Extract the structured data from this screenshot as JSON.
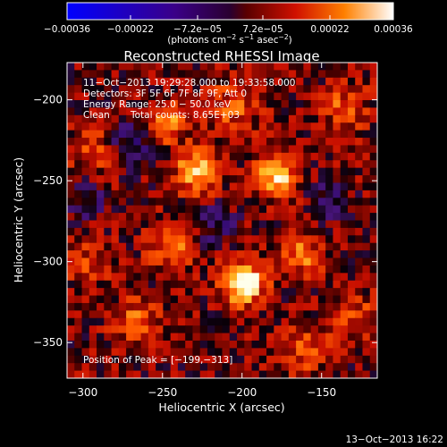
{
  "chart_data": {
    "type": "heatmap",
    "title": "Reconstructed RHESSI Image",
    "xlabel": "Heliocentric X (arcsec)",
    "ylabel": "Heliocentric Y (arcsec)",
    "xlim": [
      -310,
      -115
    ],
    "ylim": [
      -372,
      -177
    ],
    "x_ticks": [
      -300,
      -250,
      -200,
      -150
    ],
    "x_tick_labels": [
      "−300",
      "−250",
      "−200",
      "−150"
    ],
    "y_ticks": [
      -200,
      -250,
      -300,
      -350
    ],
    "y_tick_labels": [
      "−200",
      "−250",
      "−300",
      "−350"
    ],
    "colorbar": {
      "range": [
        -0.00036,
        0.00036
      ],
      "ticks": [
        -0.00036,
        -0.00022,
        -7.2e-05,
        7.2e-05,
        0.00022,
        0.00036
      ],
      "tick_labels": [
        "−0.00036",
        "−0.00022",
        "−7.2e−05",
        "7.2e−05",
        "0.00022",
        "0.00036"
      ],
      "unit_main": "(photons cm",
      "unit_exp1": "−2",
      "unit_mid": " s",
      "unit_exp2": "−1",
      "unit_end": " asec",
      "unit_exp3": "−2",
      "unit_close": ")"
    },
    "annotations": {
      "time_range": "11−Oct−2013 19:29:28.000 to 19:33:58.000",
      "detectors": "Detectors: 3F 5F 6F 7F 8F 9F, Att 0",
      "energy": "Energy Range: 25.0 − 50.0 keV",
      "clean_label": "Clean",
      "total_counts": "Total counts: 8.65E+03",
      "peak": "Position of Peak = [−199,−313]"
    },
    "peak_position": [
      -199,
      -313
    ],
    "sources": [
      {
        "x": -199,
        "y": -313,
        "amplitude": 1.0,
        "sigma": 9
      },
      {
        "x": -228,
        "y": -244,
        "amplitude": 0.78,
        "sigma": 9
      },
      {
        "x": -178,
        "y": -247,
        "amplitude": 0.72,
        "sigma": 9
      },
      {
        "x": -248,
        "y": -215,
        "amplitude": 0.62,
        "sigma": 8
      },
      {
        "x": -245,
        "y": -289,
        "amplitude": 0.45,
        "sigma": 10
      },
      {
        "x": -162,
        "y": -296,
        "amplitude": 0.45,
        "sigma": 9
      },
      {
        "x": -267,
        "y": -338,
        "amplitude": 0.4,
        "sigma": 10
      },
      {
        "x": -207,
        "y": -205,
        "amplitude": 0.35,
        "sigma": 12
      },
      {
        "x": -135,
        "y": -205,
        "amplitude": 0.38,
        "sigma": 10
      },
      {
        "x": -131,
        "y": -333,
        "amplitude": 0.35,
        "sigma": 10
      },
      {
        "x": -160,
        "y": -355,
        "amplitude": 0.32,
        "sigma": 10
      },
      {
        "x": -292,
        "y": -232,
        "amplitude": 0.35,
        "sigma": 10
      },
      {
        "x": -296,
        "y": -300,
        "amplitude": 0.3,
        "sigma": 10
      }
    ],
    "negative_regions": [
      {
        "x": -270,
        "y": -228,
        "amplitude": -0.35,
        "sigma": 10
      },
      {
        "x": -217,
        "y": -278,
        "amplitude": -0.3,
        "sigma": 9
      },
      {
        "x": -296,
        "y": -262,
        "amplitude": -0.3,
        "sigma": 8
      },
      {
        "x": -145,
        "y": -262,
        "amplitude": -0.25,
        "sigma": 8
      }
    ]
  },
  "footer": {
    "date": "13−Oct−2013 16:22"
  },
  "colors": {
    "background": "#000000",
    "text": "#ffffff"
  }
}
